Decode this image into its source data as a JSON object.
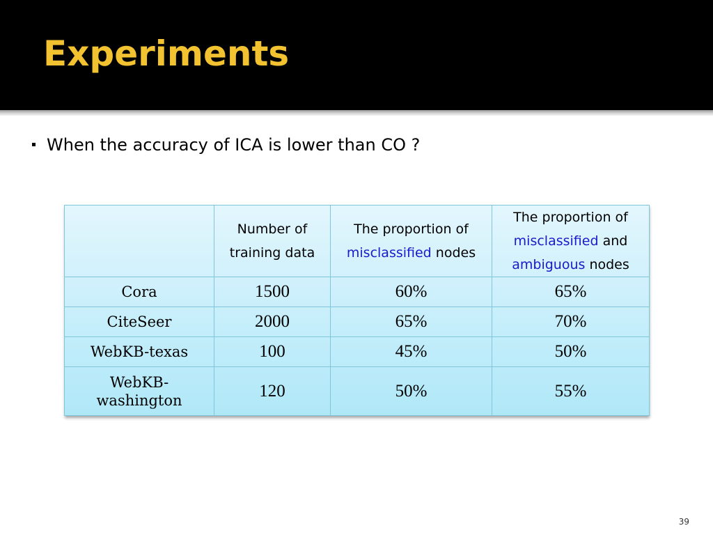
{
  "slide": {
    "title": "Experiments",
    "bullet": "When the accuracy of ICA is lower than CO ?",
    "page_number": "39"
  },
  "table": {
    "headers": {
      "col0": "",
      "col1": "Number of training data",
      "col2_pre": "The proportion of ",
      "col2_hl": "misclassified",
      "col2_post": " nodes",
      "col3_pre": "The proportion of ",
      "col3_hl1": "misclassified",
      "col3_mid": " and ",
      "col3_hl2": "ambiguous",
      "col3_post": " nodes"
    },
    "rows": [
      {
        "name": "Cora",
        "training": "1500",
        "misclassified": "60%",
        "misclassified_ambiguous": "65%"
      },
      {
        "name": "CiteSeer",
        "training": "2000",
        "misclassified": "65%",
        "misclassified_ambiguous": "70%"
      },
      {
        "name": "WebKB-texas",
        "training": "100",
        "misclassified": "45%",
        "misclassified_ambiguous": "50%"
      },
      {
        "name": "WebKB-washington",
        "training": "120",
        "misclassified": "50%",
        "misclassified_ambiguous": "55%"
      }
    ]
  },
  "colors": {
    "title": "#f2c230",
    "highlight": "#1a1acc",
    "header_bg": "#000000"
  }
}
